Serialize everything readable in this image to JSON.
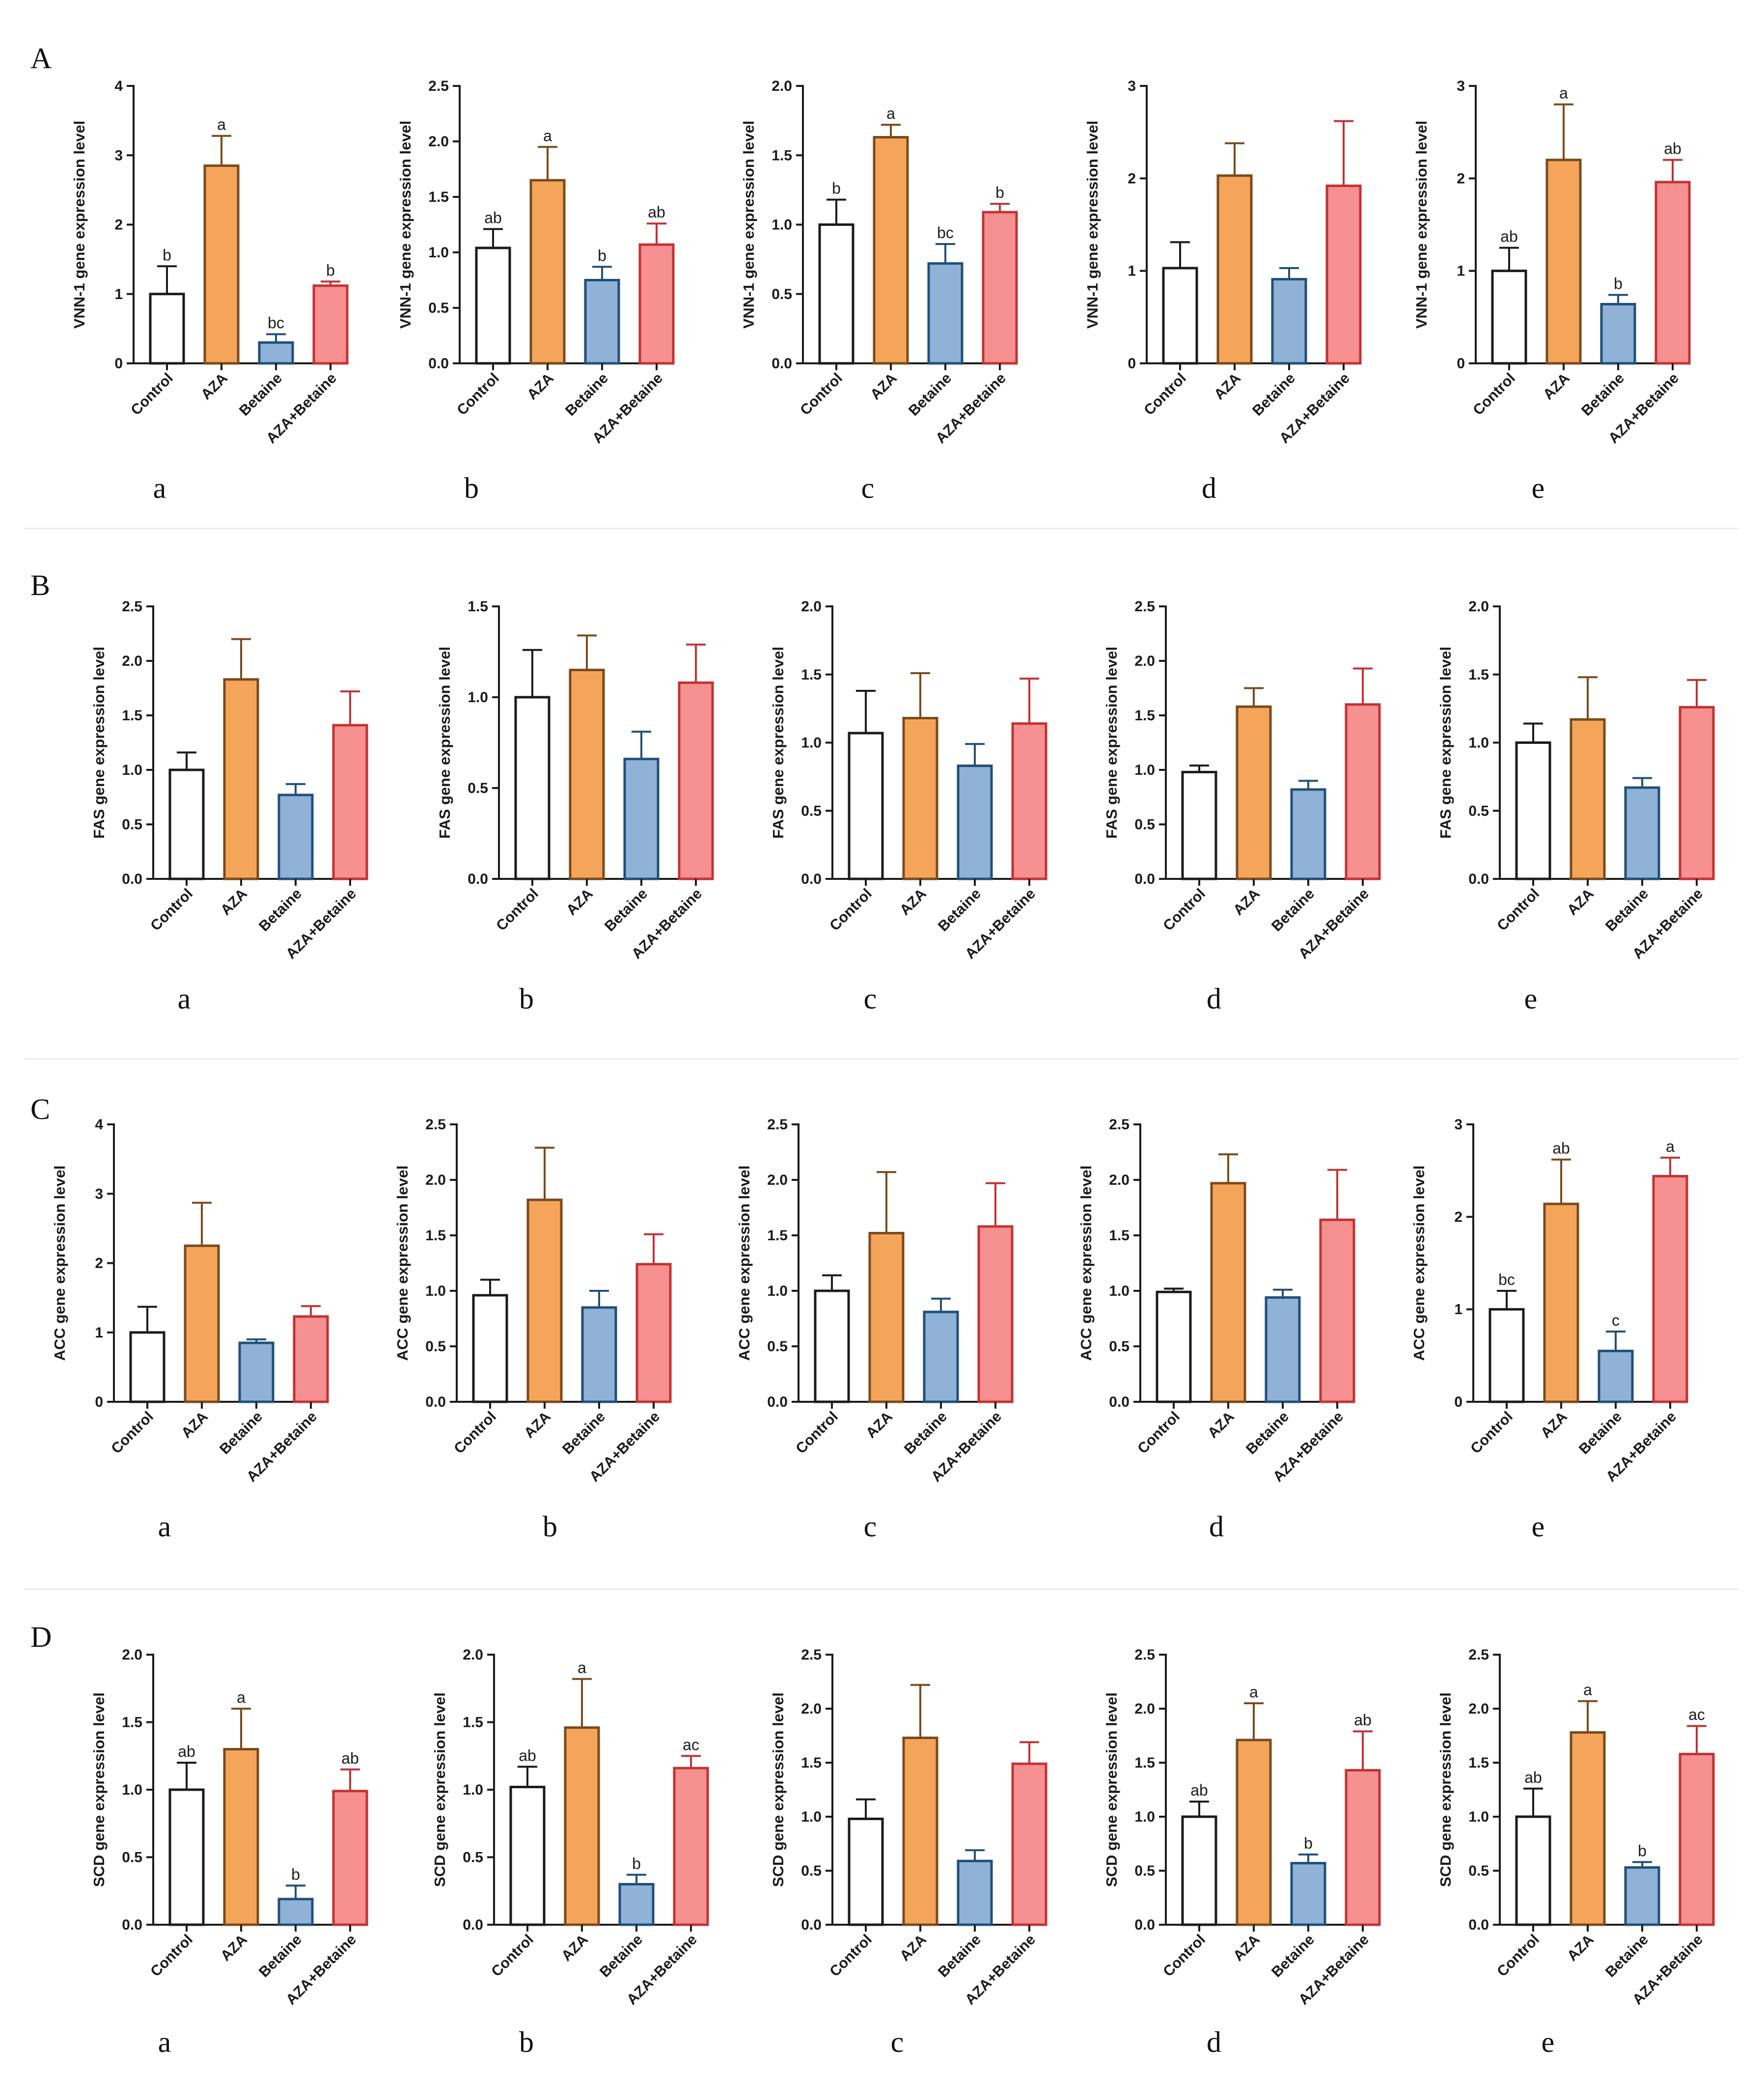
{
  "colors": {
    "control_fill": "#ffffff",
    "control_stroke": "#1a1a1a",
    "aza_fill": "#f5a55a",
    "aza_stroke": "#7a4a1c",
    "betaine_fill": "#8fb2d6",
    "betaine_stroke": "#1f4f7a",
    "azabetaine_fill": "#f79090",
    "azabetaine_stroke": "#c23232",
    "axis": "#1a1a1a"
  },
  "chart_data": [
    {
      "row": "A",
      "panel": "a",
      "type": "bar",
      "ylabel": "VNN-1 gene expression level",
      "categories": [
        "Control",
        "AZA",
        "Betaine",
        "AZA+Betaine"
      ],
      "ylim": [
        0,
        4
      ],
      "yticks": [
        "0",
        "1",
        "2",
        "3",
        "4"
      ],
      "ytick_values": [
        0,
        1,
        2,
        3,
        4
      ],
      "values": [
        1.0,
        2.85,
        0.3,
        1.12
      ],
      "errors": [
        0.4,
        0.43,
        0.12,
        0.06
      ],
      "labels": [
        "b",
        "a",
        "bc",
        "b"
      ]
    },
    {
      "row": "A",
      "panel": "b",
      "type": "bar",
      "ylabel": "VNN-1 gene expression level",
      "categories": [
        "Control",
        "AZA",
        "Betaine",
        "AZA+Betaine"
      ],
      "ylim": [
        0,
        2.5
      ],
      "yticks": [
        "0.0",
        "0.5",
        "1.0",
        "1.5",
        "2.0",
        "2.5"
      ],
      "ytick_values": [
        0,
        0.5,
        1.0,
        1.5,
        2.0,
        2.5
      ],
      "values": [
        1.04,
        1.65,
        0.75,
        1.07
      ],
      "errors": [
        0.17,
        0.3,
        0.12,
        0.19
      ],
      "labels": [
        "ab",
        "a",
        "b",
        "ab"
      ]
    },
    {
      "row": "A",
      "panel": "c",
      "type": "bar",
      "ylabel": "VNN-1 gene expression level",
      "categories": [
        "Control",
        "AZA",
        "Betaine",
        "AZA+Betaine"
      ],
      "ylim": [
        0,
        2.0
      ],
      "yticks": [
        "0.0",
        "0.5",
        "1.0",
        "1.5",
        "2.0"
      ],
      "ytick_values": [
        0,
        0.5,
        1.0,
        1.5,
        2.0
      ],
      "values": [
        1.0,
        1.63,
        0.72,
        1.09
      ],
      "errors": [
        0.18,
        0.09,
        0.14,
        0.06
      ],
      "labels": [
        "b",
        "a",
        "bc",
        "b"
      ]
    },
    {
      "row": "A",
      "panel": "d",
      "type": "bar",
      "ylabel": "VNN-1 gene expression level",
      "categories": [
        "Control",
        "AZA",
        "Betaine",
        "AZA+Betaine"
      ],
      "ylim": [
        0,
        3
      ],
      "yticks": [
        "0",
        "1",
        "2",
        "3"
      ],
      "ytick_values": [
        0,
        1,
        2,
        3
      ],
      "values": [
        1.03,
        2.03,
        0.91,
        1.92
      ],
      "errors": [
        0.28,
        0.35,
        0.12,
        0.7
      ],
      "labels": [
        "",
        "",
        "",
        ""
      ]
    },
    {
      "row": "A",
      "panel": "e",
      "type": "bar",
      "ylabel": "VNN-1 gene expression level",
      "categories": [
        "Control",
        "AZA",
        "Betaine",
        "AZA+Betaine"
      ],
      "ylim": [
        0,
        3
      ],
      "yticks": [
        "0",
        "1",
        "2",
        "3"
      ],
      "ytick_values": [
        0,
        1,
        2,
        3
      ],
      "values": [
        1.0,
        2.2,
        0.64,
        1.96
      ],
      "errors": [
        0.25,
        0.6,
        0.1,
        0.24
      ],
      "labels": [
        "ab",
        "a",
        "b",
        "ab"
      ]
    },
    {
      "row": "B",
      "panel": "a",
      "type": "bar",
      "ylabel": "FAS gene expression level",
      "categories": [
        "Control",
        "AZA",
        "Betaine",
        "AZA+Betaine"
      ],
      "ylim": [
        0,
        2.5
      ],
      "yticks": [
        "0.0",
        "0.5",
        "1.0",
        "1.5",
        "2.0",
        "2.5"
      ],
      "ytick_values": [
        0,
        0.5,
        1.0,
        1.5,
        2.0,
        2.5
      ],
      "values": [
        1.0,
        1.83,
        0.77,
        1.41
      ],
      "errors": [
        0.16,
        0.37,
        0.1,
        0.31
      ],
      "labels": [
        "",
        "",
        "",
        ""
      ]
    },
    {
      "row": "B",
      "panel": "b",
      "type": "bar",
      "ylabel": "FAS gene expression level",
      "categories": [
        "Control",
        "AZA",
        "Betaine",
        "AZA+Betaine"
      ],
      "ylim": [
        0,
        1.5
      ],
      "yticks": [
        "0.0",
        "0.5",
        "1.0",
        "1.5"
      ],
      "ytick_values": [
        0,
        0.5,
        1.0,
        1.5
      ],
      "values": [
        1.0,
        1.15,
        0.66,
        1.08
      ],
      "errors": [
        0.26,
        0.19,
        0.15,
        0.21
      ],
      "labels": [
        "",
        "",
        "",
        ""
      ]
    },
    {
      "row": "B",
      "panel": "c",
      "type": "bar",
      "ylabel": "FAS gene expression level",
      "categories": [
        "Control",
        "AZA",
        "Betaine",
        "AZA+Betaine"
      ],
      "ylim": [
        0,
        2.0
      ],
      "yticks": [
        "0.0",
        "0.5",
        "1.0",
        "1.5",
        "2.0"
      ],
      "ytick_values": [
        0,
        0.5,
        1.0,
        1.5,
        2.0
      ],
      "values": [
        1.07,
        1.18,
        0.83,
        1.14
      ],
      "errors": [
        0.31,
        0.33,
        0.16,
        0.33
      ],
      "labels": [
        "",
        "",
        "",
        ""
      ]
    },
    {
      "row": "B",
      "panel": "d",
      "type": "bar",
      "ylabel": "FAS gene expression level",
      "categories": [
        "Control",
        "AZA",
        "Betaine",
        "AZA+Betaine"
      ],
      "ylim": [
        0,
        2.5
      ],
      "yticks": [
        "0.0",
        "0.5",
        "1.0",
        "1.5",
        "2.0",
        "2.5"
      ],
      "ytick_values": [
        0,
        0.5,
        1.0,
        1.5,
        2.0,
        2.5
      ],
      "values": [
        0.98,
        1.58,
        0.82,
        1.6
      ],
      "errors": [
        0.06,
        0.17,
        0.08,
        0.33
      ],
      "labels": [
        "",
        "",
        "",
        ""
      ]
    },
    {
      "row": "B",
      "panel": "e",
      "type": "bar",
      "ylabel": "FAS gene expression level",
      "categories": [
        "Control",
        "AZA",
        "Betaine",
        "AZA+Betaine"
      ],
      "ylim": [
        0,
        2.0
      ],
      "yticks": [
        "0.0",
        "0.5",
        "1.0",
        "1.5",
        "2.0"
      ],
      "ytick_values": [
        0,
        0.5,
        1.0,
        1.5,
        2.0
      ],
      "values": [
        1.0,
        1.17,
        0.67,
        1.26
      ],
      "errors": [
        0.14,
        0.31,
        0.07,
        0.2
      ],
      "labels": [
        "",
        "",
        "",
        ""
      ]
    },
    {
      "row": "C",
      "panel": "a",
      "type": "bar",
      "ylabel": "ACC gene expression level",
      "categories": [
        "Control",
        "AZA",
        "Betaine",
        "AZA+Betaine"
      ],
      "ylim": [
        0,
        4
      ],
      "yticks": [
        "0",
        "1",
        "2",
        "3",
        "4"
      ],
      "ytick_values": [
        0,
        1,
        2,
        3,
        4
      ],
      "values": [
        1.0,
        2.25,
        0.85,
        1.23
      ],
      "errors": [
        0.37,
        0.62,
        0.05,
        0.15
      ],
      "labels": [
        "",
        "",
        "",
        ""
      ]
    },
    {
      "row": "C",
      "panel": "b",
      "type": "bar",
      "ylabel": "ACC gene expression level",
      "categories": [
        "Control",
        "AZA",
        "Betaine",
        "AZA+Betaine"
      ],
      "ylim": [
        0,
        2.5
      ],
      "yticks": [
        "0.0",
        "0.5",
        "1.0",
        "1.5",
        "2.0",
        "2.5"
      ],
      "ytick_values": [
        0,
        0.5,
        1.0,
        1.5,
        2.0,
        2.5
      ],
      "values": [
        0.96,
        1.82,
        0.85,
        1.24
      ],
      "errors": [
        0.14,
        0.47,
        0.15,
        0.27
      ],
      "labels": [
        "",
        "",
        "",
        ""
      ]
    },
    {
      "row": "C",
      "panel": "c",
      "type": "bar",
      "ylabel": "ACC gene expression level",
      "categories": [
        "Control",
        "AZA",
        "Betaine",
        "AZA+Betaine"
      ],
      "ylim": [
        0,
        2.5
      ],
      "yticks": [
        "0.0",
        "0.5",
        "1.0",
        "1.5",
        "2.0",
        "2.5"
      ],
      "ytick_values": [
        0,
        0.5,
        1.0,
        1.5,
        2.0,
        2.5
      ],
      "values": [
        1.0,
        1.52,
        0.81,
        1.58
      ],
      "errors": [
        0.14,
        0.55,
        0.12,
        0.39
      ],
      "labels": [
        "",
        "",
        "",
        ""
      ]
    },
    {
      "row": "C",
      "panel": "d",
      "type": "bar",
      "ylabel": "ACC gene expression level",
      "categories": [
        "Control",
        "AZA",
        "Betaine",
        "AZA+Betaine"
      ],
      "ylim": [
        0,
        2.5
      ],
      "yticks": [
        "0.0",
        "0.5",
        "1.0",
        "1.5",
        "2.0",
        "2.5"
      ],
      "ytick_values": [
        0,
        0.5,
        1.0,
        1.5,
        2.0,
        2.5
      ],
      "values": [
        0.99,
        1.97,
        0.94,
        1.64
      ],
      "errors": [
        0.03,
        0.26,
        0.07,
        0.45
      ],
      "labels": [
        "",
        "",
        "",
        ""
      ]
    },
    {
      "row": "C",
      "panel": "e",
      "type": "bar",
      "ylabel": "ACC gene expression level",
      "categories": [
        "Control",
        "AZA",
        "Betaine",
        "AZA+Betaine"
      ],
      "ylim": [
        0,
        3
      ],
      "yticks": [
        "0",
        "1",
        "2",
        "3"
      ],
      "ytick_values": [
        0,
        1,
        2,
        3
      ],
      "values": [
        1.0,
        2.14,
        0.55,
        2.44
      ],
      "errors": [
        0.2,
        0.48,
        0.21,
        0.2
      ],
      "labels": [
        "bc",
        "ab",
        "c",
        "a"
      ]
    },
    {
      "row": "D",
      "panel": "a",
      "type": "bar",
      "ylabel": "SCD gene expression level",
      "categories": [
        "Control",
        "AZA",
        "Betaine",
        "AZA+Betaine"
      ],
      "ylim": [
        0,
        2.0
      ],
      "yticks": [
        "0.0",
        "0.5",
        "1.0",
        "1.5",
        "2.0"
      ],
      "ytick_values": [
        0,
        0.5,
        1.0,
        1.5,
        2.0
      ],
      "values": [
        1.0,
        1.3,
        0.19,
        0.99
      ],
      "errors": [
        0.2,
        0.3,
        0.1,
        0.16
      ],
      "labels": [
        "ab",
        "a",
        "b",
        "ab"
      ]
    },
    {
      "row": "D",
      "panel": "b",
      "type": "bar",
      "ylabel": "SCD gene expression level",
      "categories": [
        "Control",
        "AZA",
        "Betaine",
        "AZA+Betaine"
      ],
      "ylim": [
        0,
        2.0
      ],
      "yticks": [
        "0.0",
        "0.5",
        "1.0",
        "1.5",
        "2.0"
      ],
      "ytick_values": [
        0,
        0.5,
        1.0,
        1.5,
        2.0
      ],
      "values": [
        1.02,
        1.46,
        0.3,
        1.16
      ],
      "errors": [
        0.15,
        0.36,
        0.07,
        0.09
      ],
      "labels": [
        "ab",
        "a",
        "b",
        "ac"
      ]
    },
    {
      "row": "D",
      "panel": "c",
      "type": "bar",
      "ylabel": "SCD gene expression level",
      "categories": [
        "Control",
        "AZA",
        "Betaine",
        "AZA+Betaine"
      ],
      "ylim": [
        0,
        2.5
      ],
      "yticks": [
        "0.0",
        "0.5",
        "1.0",
        "1.5",
        "2.0",
        "2.5"
      ],
      "ytick_values": [
        0,
        0.5,
        1.0,
        1.5,
        2.0,
        2.5
      ],
      "values": [
        0.98,
        1.73,
        0.59,
        1.49
      ],
      "errors": [
        0.18,
        0.49,
        0.1,
        0.2
      ],
      "labels": [
        "",
        "",
        "",
        ""
      ]
    },
    {
      "row": "D",
      "panel": "d",
      "type": "bar",
      "ylabel": "SCD gene expression level",
      "categories": [
        "Control",
        "AZA",
        "Betaine",
        "AZA+Betaine"
      ],
      "ylim": [
        0,
        2.5
      ],
      "yticks": [
        "0.0",
        "0.5",
        "1.0",
        "1.5",
        "2.0",
        "2.5"
      ],
      "ytick_values": [
        0,
        0.5,
        1.0,
        1.5,
        2.0,
        2.5
      ],
      "values": [
        1.0,
        1.71,
        0.57,
        1.43
      ],
      "errors": [
        0.14,
        0.34,
        0.08,
        0.36
      ],
      "labels": [
        "ab",
        "a",
        "b",
        "ab"
      ]
    },
    {
      "row": "D",
      "panel": "e",
      "type": "bar",
      "ylabel": "SCD gene expression level",
      "categories": [
        "Control",
        "AZA",
        "Betaine",
        "AZA+Betaine"
      ],
      "ylim": [
        0,
        2.5
      ],
      "yticks": [
        "0.0",
        "0.5",
        "1.0",
        "1.5",
        "2.0",
        "2.5"
      ],
      "ytick_values": [
        0,
        0.5,
        1.0,
        1.5,
        2.0,
        2.5
      ],
      "values": [
        1.0,
        1.78,
        0.53,
        1.58
      ],
      "errors": [
        0.26,
        0.29,
        0.05,
        0.26
      ],
      "labels": [
        "ab",
        "a",
        "b",
        "ac"
      ]
    }
  ],
  "rows": [
    {
      "letter": "A",
      "subletters": [
        "a",
        "b",
        "c",
        "d",
        "e"
      ]
    },
    {
      "letter": "B",
      "subletters": [
        "a",
        "b",
        "c",
        "d",
        "e"
      ]
    },
    {
      "letter": "C",
      "subletters": [
        "a",
        "b",
        "c",
        "d",
        "e"
      ]
    },
    {
      "letter": "D",
      "subletters": [
        "a",
        "b",
        "c",
        "d",
        "e"
      ]
    }
  ]
}
